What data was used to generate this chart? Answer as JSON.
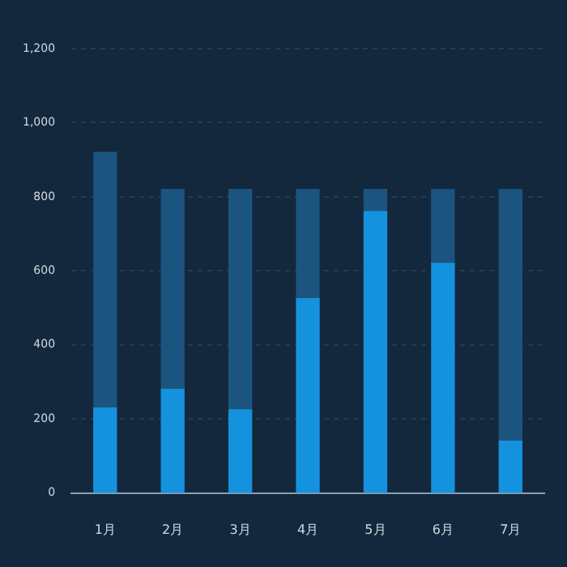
{
  "chart_data": {
    "type": "bar",
    "categories": [
      "1月",
      "2月",
      "3月",
      "4月",
      "5月",
      "6月",
      "7月"
    ],
    "series": [
      {
        "color": "#1592de",
        "values": [
          230,
          280,
          225,
          525,
          760,
          620,
          140
        ]
      },
      {
        "color": "#1c5480",
        "values": [
          690,
          540,
          595,
          295,
          60,
          200,
          680
        ]
      }
    ],
    "stacked": true,
    "ylim": [
      0,
      1200
    ],
    "yticks": [
      0,
      200,
      400,
      600,
      800,
      {
        "value": 1000,
        "label": "1,000"
      },
      {
        "value": 1200,
        "label": "1,200"
      }
    ],
    "grid": "y",
    "legend": false
  }
}
